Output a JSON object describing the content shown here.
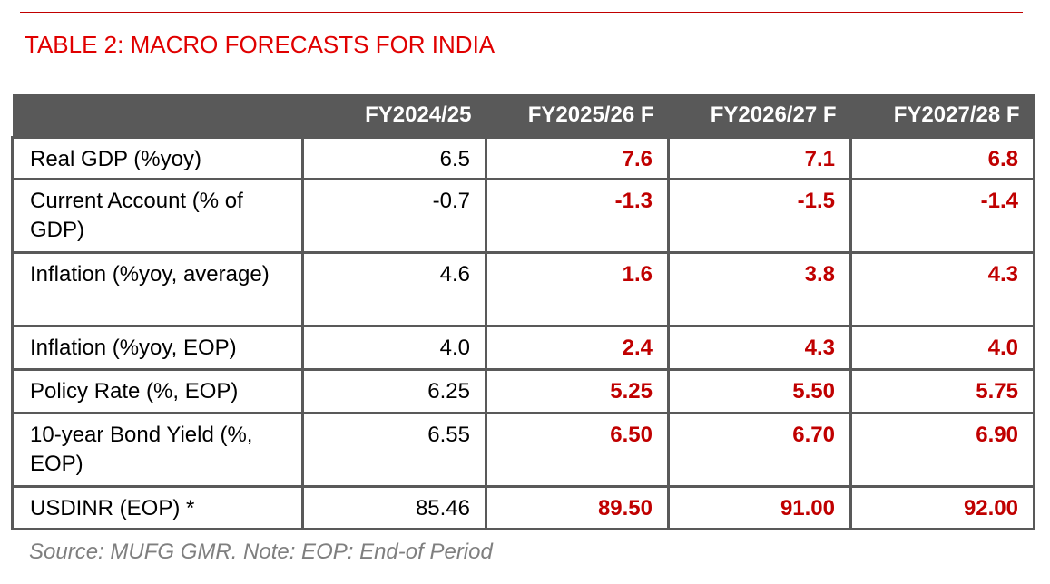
{
  "title": "TABLE 2: MACRO FORECASTS FOR INDIA",
  "accent_color": "#c00000",
  "header_color": "#595959",
  "table": {
    "columns": [
      "",
      "FY2024/25",
      "FY2025/26 F",
      "FY2026/27 F",
      "FY2027/28 F"
    ],
    "rows": [
      {
        "label": "Real GDP (%yoy)",
        "values": [
          "6.5",
          "7.6",
          "7.1",
          "6.8"
        ]
      },
      {
        "label": "Current Account (% of GDP)",
        "values": [
          "-0.7",
          "-1.3",
          "-1.5",
          "-1.4"
        ]
      },
      {
        "label": "Inflation (%yoy, average)",
        "values": [
          "4.6",
          "1.6",
          "3.8",
          "4.3"
        ]
      },
      {
        "label": "Inflation (%yoy, EOP)",
        "values": [
          "4.0",
          "2.4",
          "4.3",
          "4.0"
        ]
      },
      {
        "label": "Policy Rate (%, EOP)",
        "values": [
          "6.25",
          "5.25",
          "5.50",
          "5.75"
        ]
      },
      {
        "label": "10-year Bond Yield (%, EOP)",
        "values": [
          "6.55",
          "6.50",
          "6.70",
          "6.90"
        ]
      },
      {
        "label": "USDINR (EOP) *",
        "values": [
          "85.46",
          "89.50",
          "91.00",
          "92.00"
        ]
      }
    ]
  },
  "source": "Source: MUFG GMR. Note: EOP: End-of Period"
}
